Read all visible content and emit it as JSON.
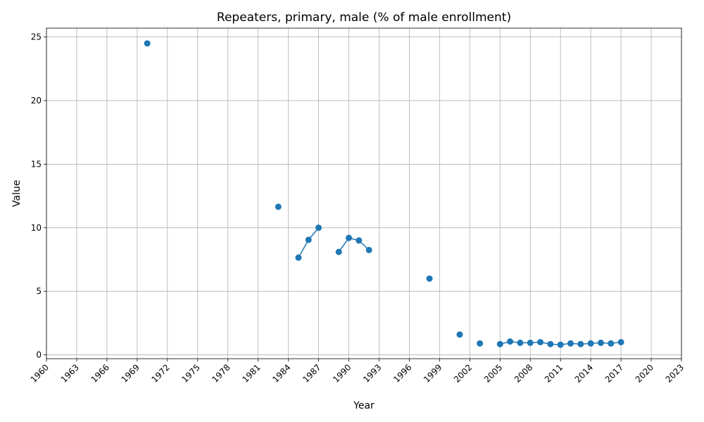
{
  "chart_data": {
    "type": "line",
    "title": "Repeaters, primary, male (% of male enrollment)",
    "xlabel": "Year",
    "ylabel": "Value",
    "xlim": [
      1960,
      2023
    ],
    "ylim": [
      -0.3,
      25.7
    ],
    "xticks": [
      1960,
      1963,
      1966,
      1969,
      1972,
      1975,
      1978,
      1981,
      1984,
      1987,
      1990,
      1993,
      1996,
      1999,
      2002,
      2005,
      2008,
      2011,
      2014,
      2017,
      2020,
      2023
    ],
    "yticks": [
      0,
      5,
      10,
      15,
      20,
      25
    ],
    "grid": true,
    "series": [
      {
        "color": "#1f77b4",
        "points": [
          {
            "x": 1970,
            "y": 24.5
          },
          {
            "x": 1983,
            "y": 11.65
          },
          {
            "x": 1985,
            "y": 7.65
          },
          {
            "x": 1986,
            "y": 9.05
          },
          {
            "x": 1987,
            "y": 10.0
          },
          {
            "x": 1989,
            "y": 8.1
          },
          {
            "x": 1990,
            "y": 9.2
          },
          {
            "x": 1991,
            "y": 9.0
          },
          {
            "x": 1992,
            "y": 8.25
          },
          {
            "x": 1998,
            "y": 6.0
          },
          {
            "x": 2001,
            "y": 1.6
          },
          {
            "x": 2003,
            "y": 0.9
          },
          {
            "x": 2005,
            "y": 0.85
          },
          {
            "x": 2006,
            "y": 1.05
          },
          {
            "x": 2007,
            "y": 0.95
          },
          {
            "x": 2008,
            "y": 0.95
          },
          {
            "x": 2009,
            "y": 1.0
          },
          {
            "x": 2010,
            "y": 0.85
          },
          {
            "x": 2011,
            "y": 0.8
          },
          {
            "x": 2012,
            "y": 0.9
          },
          {
            "x": 2013,
            "y": 0.85
          },
          {
            "x": 2014,
            "y": 0.9
          },
          {
            "x": 2015,
            "y": 0.95
          },
          {
            "x": 2016,
            "y": 0.9
          },
          {
            "x": 2017,
            "y": 1.0
          }
        ]
      }
    ]
  }
}
